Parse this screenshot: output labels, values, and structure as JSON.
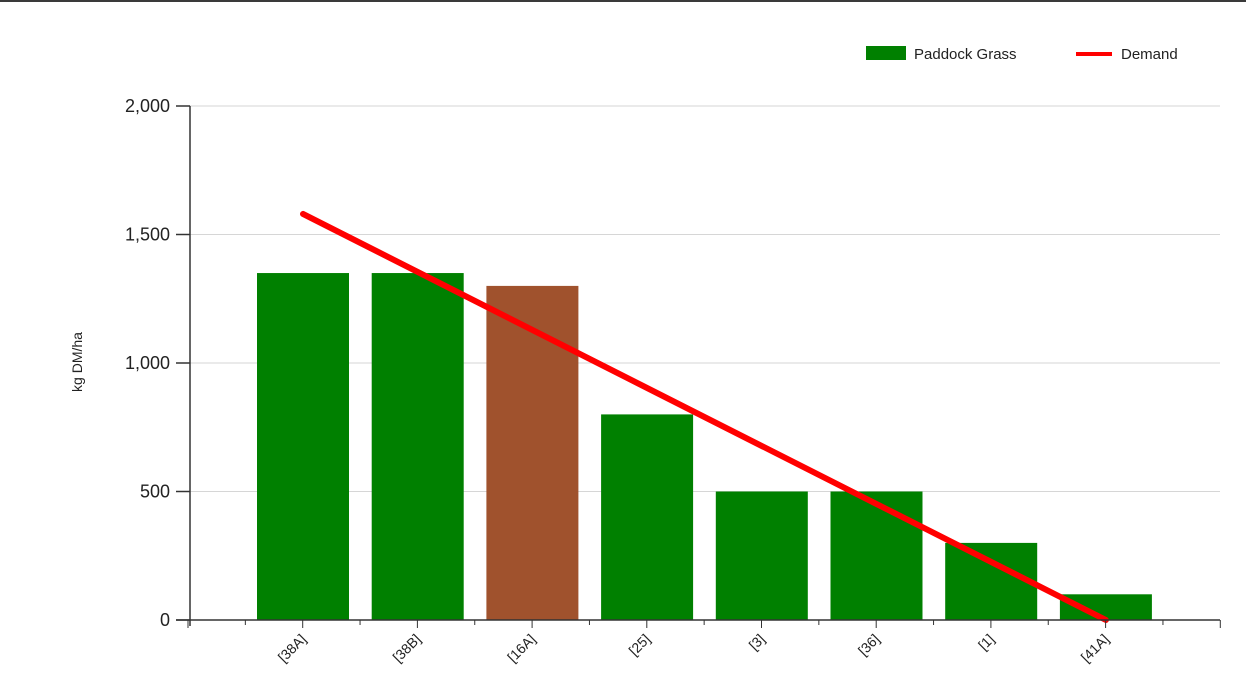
{
  "chart_data": {
    "type": "bar",
    "ylabel": "kg DM/ha",
    "xlabel": "",
    "title": "",
    "ylim": [
      0,
      2000
    ],
    "yticks": [
      0,
      500,
      1000,
      1500,
      2000
    ],
    "ytick_labels": [
      "0",
      "500",
      "1,000",
      "1,500",
      "2,000"
    ],
    "grid": true,
    "legend_position": "top-right",
    "categories": [
      "[38A]",
      "[38B]",
      "[16A]",
      "[25]",
      "[3]",
      "[36]",
      "[1]",
      "[41A]"
    ],
    "series": [
      {
        "name": "Paddock Grass",
        "kind": "bar",
        "color": "#008000",
        "values": [
          1350,
          1350,
          1300,
          800,
          500,
          500,
          300,
          100
        ],
        "point_colors": [
          "#008000",
          "#008000",
          "#a0522d",
          "#008000",
          "#008000",
          "#008000",
          "#008000",
          "#008000"
        ]
      },
      {
        "name": "Demand",
        "kind": "line",
        "color": "#ff0000",
        "start": {
          "category": "[38A]",
          "value": 1580
        },
        "end": {
          "category": "[41A]",
          "value": 0
        }
      }
    ]
  }
}
